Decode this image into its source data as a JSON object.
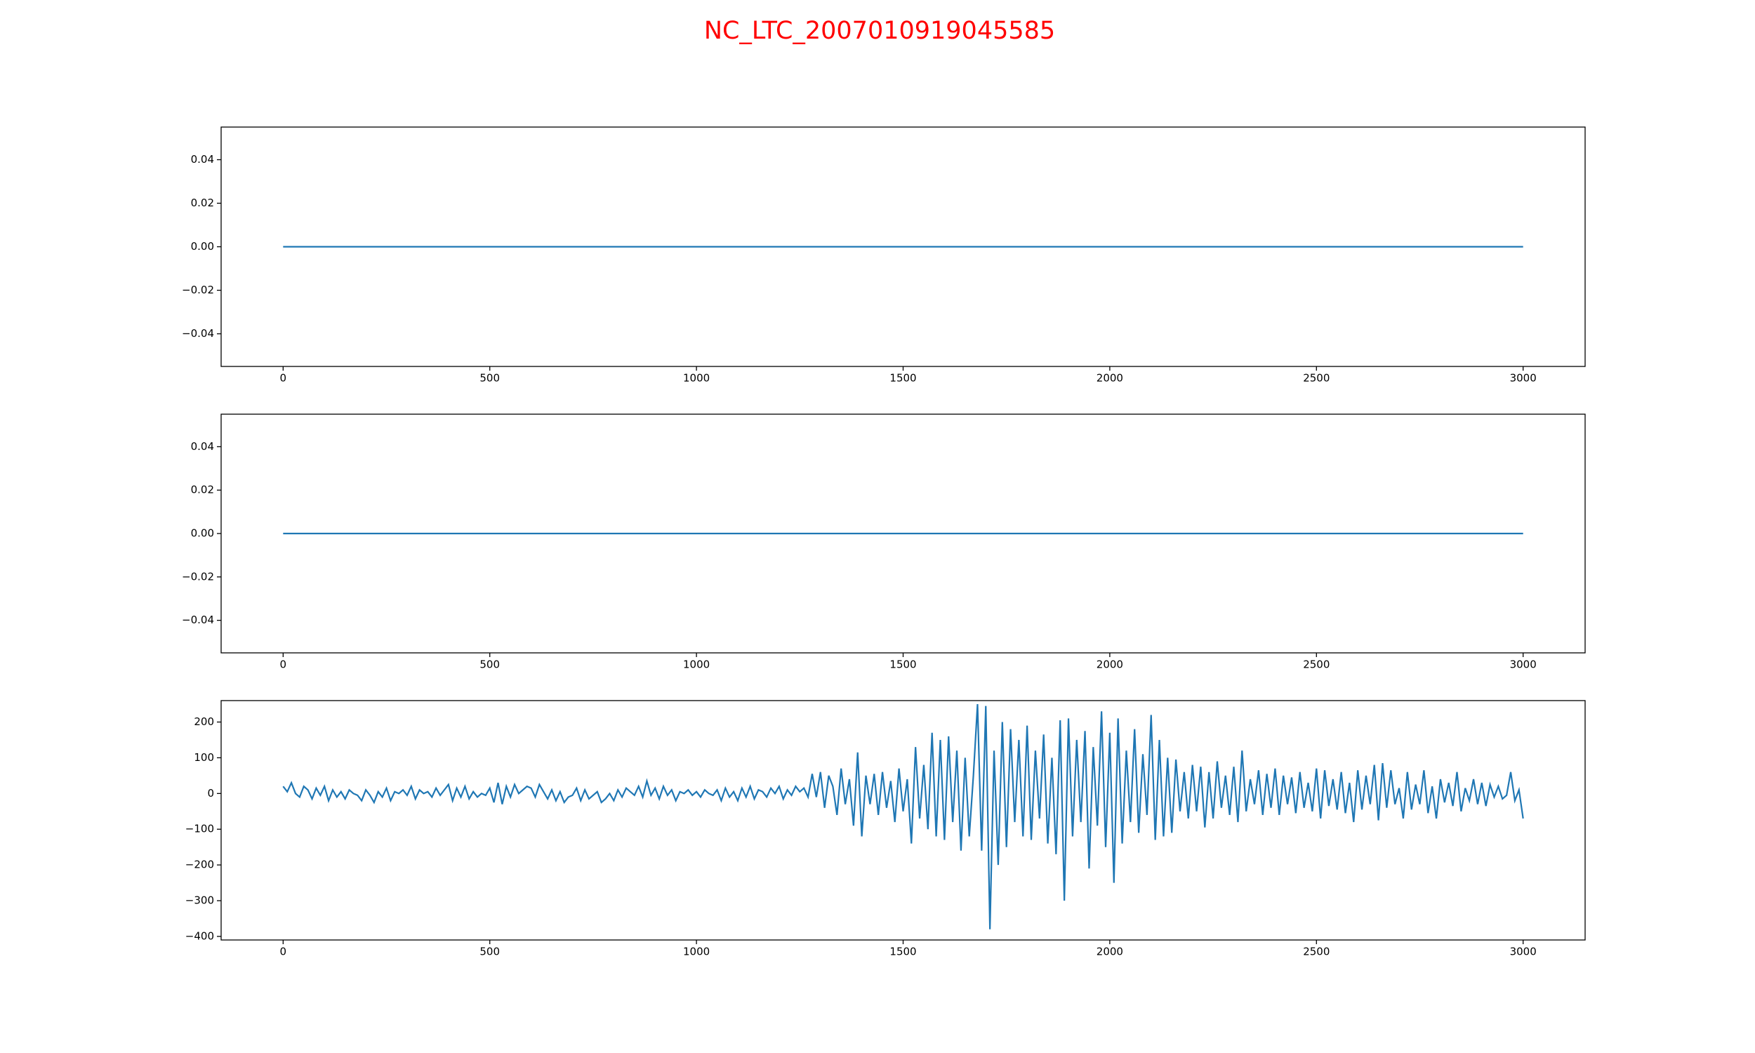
{
  "title": "NC_LTC_2007010919045585",
  "title_color": "#ff0000",
  "chart_data": [
    {
      "type": "line",
      "color": "#1f77b4",
      "x": [
        0,
        3000
      ],
      "values": [
        0,
        0
      ],
      "xlim": [
        -150,
        3150
      ],
      "xticks": [
        0,
        500,
        1000,
        1500,
        2000,
        2500,
        3000
      ],
      "ylim": [
        -0.055,
        0.055
      ],
      "yticks": [
        {
          "value": -0.04,
          "label": "−0.04"
        },
        {
          "value": -0.02,
          "label": "−0.02"
        },
        {
          "value": 0,
          "label": "0.00"
        },
        0.02,
        0.04
      ]
    },
    {
      "type": "line",
      "color": "#1f77b4",
      "x": [
        0,
        3000
      ],
      "values": [
        0,
        0
      ],
      "xlim": [
        -150,
        3150
      ],
      "xticks": [
        0,
        500,
        1000,
        1500,
        2000,
        2500,
        3000
      ],
      "ylim": [
        -0.055,
        0.055
      ],
      "yticks": [
        {
          "value": -0.04,
          "label": "−0.04"
        },
        {
          "value": -0.02,
          "label": "−0.02"
        },
        {
          "value": 0,
          "label": "0.00"
        },
        0.02,
        0.04
      ]
    },
    {
      "type": "line",
      "color": "#1f77b4",
      "x": [
        0,
        10,
        20,
        30,
        40,
        50,
        60,
        70,
        80,
        90,
        100,
        110,
        120,
        130,
        140,
        150,
        160,
        170,
        180,
        190,
        200,
        210,
        220,
        230,
        240,
        250,
        260,
        270,
        280,
        290,
        300,
        310,
        320,
        330,
        340,
        350,
        360,
        370,
        380,
        390,
        400,
        410,
        420,
        430,
        440,
        450,
        460,
        470,
        480,
        490,
        500,
        510,
        520,
        530,
        540,
        550,
        560,
        570,
        580,
        590,
        600,
        610,
        620,
        630,
        640,
        650,
        660,
        670,
        680,
        690,
        700,
        710,
        720,
        730,
        740,
        750,
        760,
        770,
        780,
        790,
        800,
        810,
        820,
        830,
        840,
        850,
        860,
        870,
        880,
        890,
        900,
        910,
        920,
        930,
        940,
        950,
        960,
        970,
        980,
        990,
        1000,
        1010,
        1020,
        1030,
        1040,
        1050,
        1060,
        1070,
        1080,
        1090,
        1100,
        1110,
        1120,
        1130,
        1140,
        1150,
        1160,
        1170,
        1180,
        1190,
        1200,
        1210,
        1220,
        1230,
        1240,
        1250,
        1260,
        1270,
        1280,
        1290,
        1300,
        1310,
        1320,
        1330,
        1340,
        1350,
        1360,
        1370,
        1380,
        1390,
        1400,
        1410,
        1420,
        1430,
        1440,
        1450,
        1460,
        1470,
        1480,
        1490,
        1500,
        1510,
        1520,
        1530,
        1540,
        1550,
        1560,
        1570,
        1580,
        1590,
        1600,
        1610,
        1620,
        1630,
        1640,
        1650,
        1660,
        1670,
        1680,
        1690,
        1700,
        1710,
        1720,
        1730,
        1740,
        1750,
        1760,
        1770,
        1780,
        1790,
        1800,
        1810,
        1820,
        1830,
        1840,
        1850,
        1860,
        1870,
        1880,
        1890,
        1900,
        1910,
        1920,
        1930,
        1940,
        1950,
        1960,
        1970,
        1980,
        1990,
        2000,
        2010,
        2020,
        2030,
        2040,
        2050,
        2060,
        2070,
        2080,
        2090,
        2100,
        2110,
        2120,
        2130,
        2140,
        2150,
        2160,
        2170,
        2180,
        2190,
        2200,
        2210,
        2220,
        2230,
        2240,
        2250,
        2260,
        2270,
        2280,
        2290,
        2300,
        2310,
        2320,
        2330,
        2340,
        2350,
        2360,
        2370,
        2380,
        2390,
        2400,
        2410,
        2420,
        2430,
        2440,
        2450,
        2460,
        2470,
        2480,
        2490,
        2500,
        2510,
        2520,
        2530,
        2540,
        2550,
        2560,
        2570,
        2580,
        2590,
        2600,
        2610,
        2620,
        2630,
        2640,
        2650,
        2660,
        2670,
        2680,
        2690,
        2700,
        2710,
        2720,
        2730,
        2740,
        2750,
        2760,
        2770,
        2780,
        2790,
        2800,
        2810,
        2820,
        2830,
        2840,
        2850,
        2860,
        2870,
        2880,
        2890,
        2900,
        2910,
        2920,
        2930,
        2940,
        2950,
        2960,
        2970,
        2980,
        2990,
        3000
      ],
      "values": [
        20,
        5,
        30,
        0,
        -10,
        20,
        10,
        -15,
        15,
        -5,
        20,
        -20,
        10,
        -10,
        5,
        -15,
        10,
        0,
        -5,
        -20,
        10,
        -5,
        -25,
        5,
        -10,
        15,
        -20,
        5,
        0,
        10,
        -5,
        20,
        -15,
        10,
        0,
        5,
        -10,
        15,
        -5,
        10,
        25,
        -20,
        15,
        -10,
        20,
        -15,
        5,
        -10,
        0,
        -5,
        15,
        -25,
        30,
        -30,
        20,
        -10,
        25,
        0,
        10,
        20,
        15,
        -10,
        25,
        5,
        -15,
        10,
        -20,
        5,
        -25,
        -10,
        -5,
        15,
        -20,
        10,
        -15,
        -5,
        5,
        -25,
        -15,
        0,
        -20,
        10,
        -10,
        15,
        5,
        -5,
        20,
        -10,
        35,
        -5,
        15,
        -15,
        20,
        -5,
        10,
        -20,
        5,
        0,
        10,
        -5,
        5,
        -10,
        10,
        0,
        -5,
        10,
        -20,
        15,
        -10,
        5,
        -20,
        15,
        -10,
        20,
        -15,
        10,
        5,
        -10,
        15,
        0,
        20,
        -15,
        10,
        -5,
        20,
        5,
        15,
        -10,
        55,
        -10,
        60,
        -40,
        50,
        20,
        -60,
        70,
        -30,
        40,
        -90,
        115,
        -120,
        50,
        -30,
        55,
        -60,
        60,
        -40,
        35,
        -80,
        70,
        -50,
        40,
        -140,
        130,
        -70,
        80,
        -100,
        170,
        -120,
        150,
        -130,
        160,
        -80,
        120,
        -160,
        100,
        -120,
        50,
        250,
        -160,
        245,
        -380,
        120,
        -200,
        200,
        -150,
        180,
        -80,
        150,
        -120,
        190,
        -130,
        120,
        -70,
        165,
        -140,
        100,
        -170,
        205,
        -300,
        210,
        -120,
        150,
        -80,
        175,
        -210,
        130,
        -90,
        230,
        -150,
        170,
        -250,
        210,
        -140,
        120,
        -80,
        180,
        -110,
        110,
        -60,
        220,
        -130,
        150,
        -120,
        100,
        -110,
        95,
        -50,
        60,
        -70,
        80,
        -50,
        75,
        -95,
        60,
        -70,
        90,
        -40,
        50,
        -60,
        75,
        -80,
        120,
        -50,
        40,
        -30,
        65,
        -60,
        55,
        -40,
        70,
        -60,
        50,
        -30,
        45,
        -55,
        60,
        -40,
        30,
        -50,
        70,
        -70,
        65,
        -35,
        40,
        -45,
        60,
        -55,
        30,
        -80,
        65,
        -45,
        50,
        -30,
        80,
        -75,
        85,
        -40,
        65,
        -30,
        15,
        -70,
        60,
        -45,
        25,
        -30,
        65,
        -55,
        20,
        -70,
        40,
        -25,
        30,
        -35,
        60,
        -50,
        15,
        -20,
        40,
        -30,
        30,
        -35,
        25,
        -10,
        20,
        -15,
        -5,
        60,
        -20,
        10,
        -70
      ],
      "xlim": [
        -150,
        3150
      ],
      "xticks": [
        0,
        500,
        1000,
        1500,
        2000,
        2500,
        3000
      ],
      "ylim": [
        -410,
        260
      ],
      "yticks": [
        {
          "value": -400,
          "label": "−400"
        },
        {
          "value": -300,
          "label": "−300"
        },
        {
          "value": -200,
          "label": "−200"
        },
        {
          "value": -100,
          "label": "−100"
        },
        0,
        100,
        200
      ]
    }
  ]
}
